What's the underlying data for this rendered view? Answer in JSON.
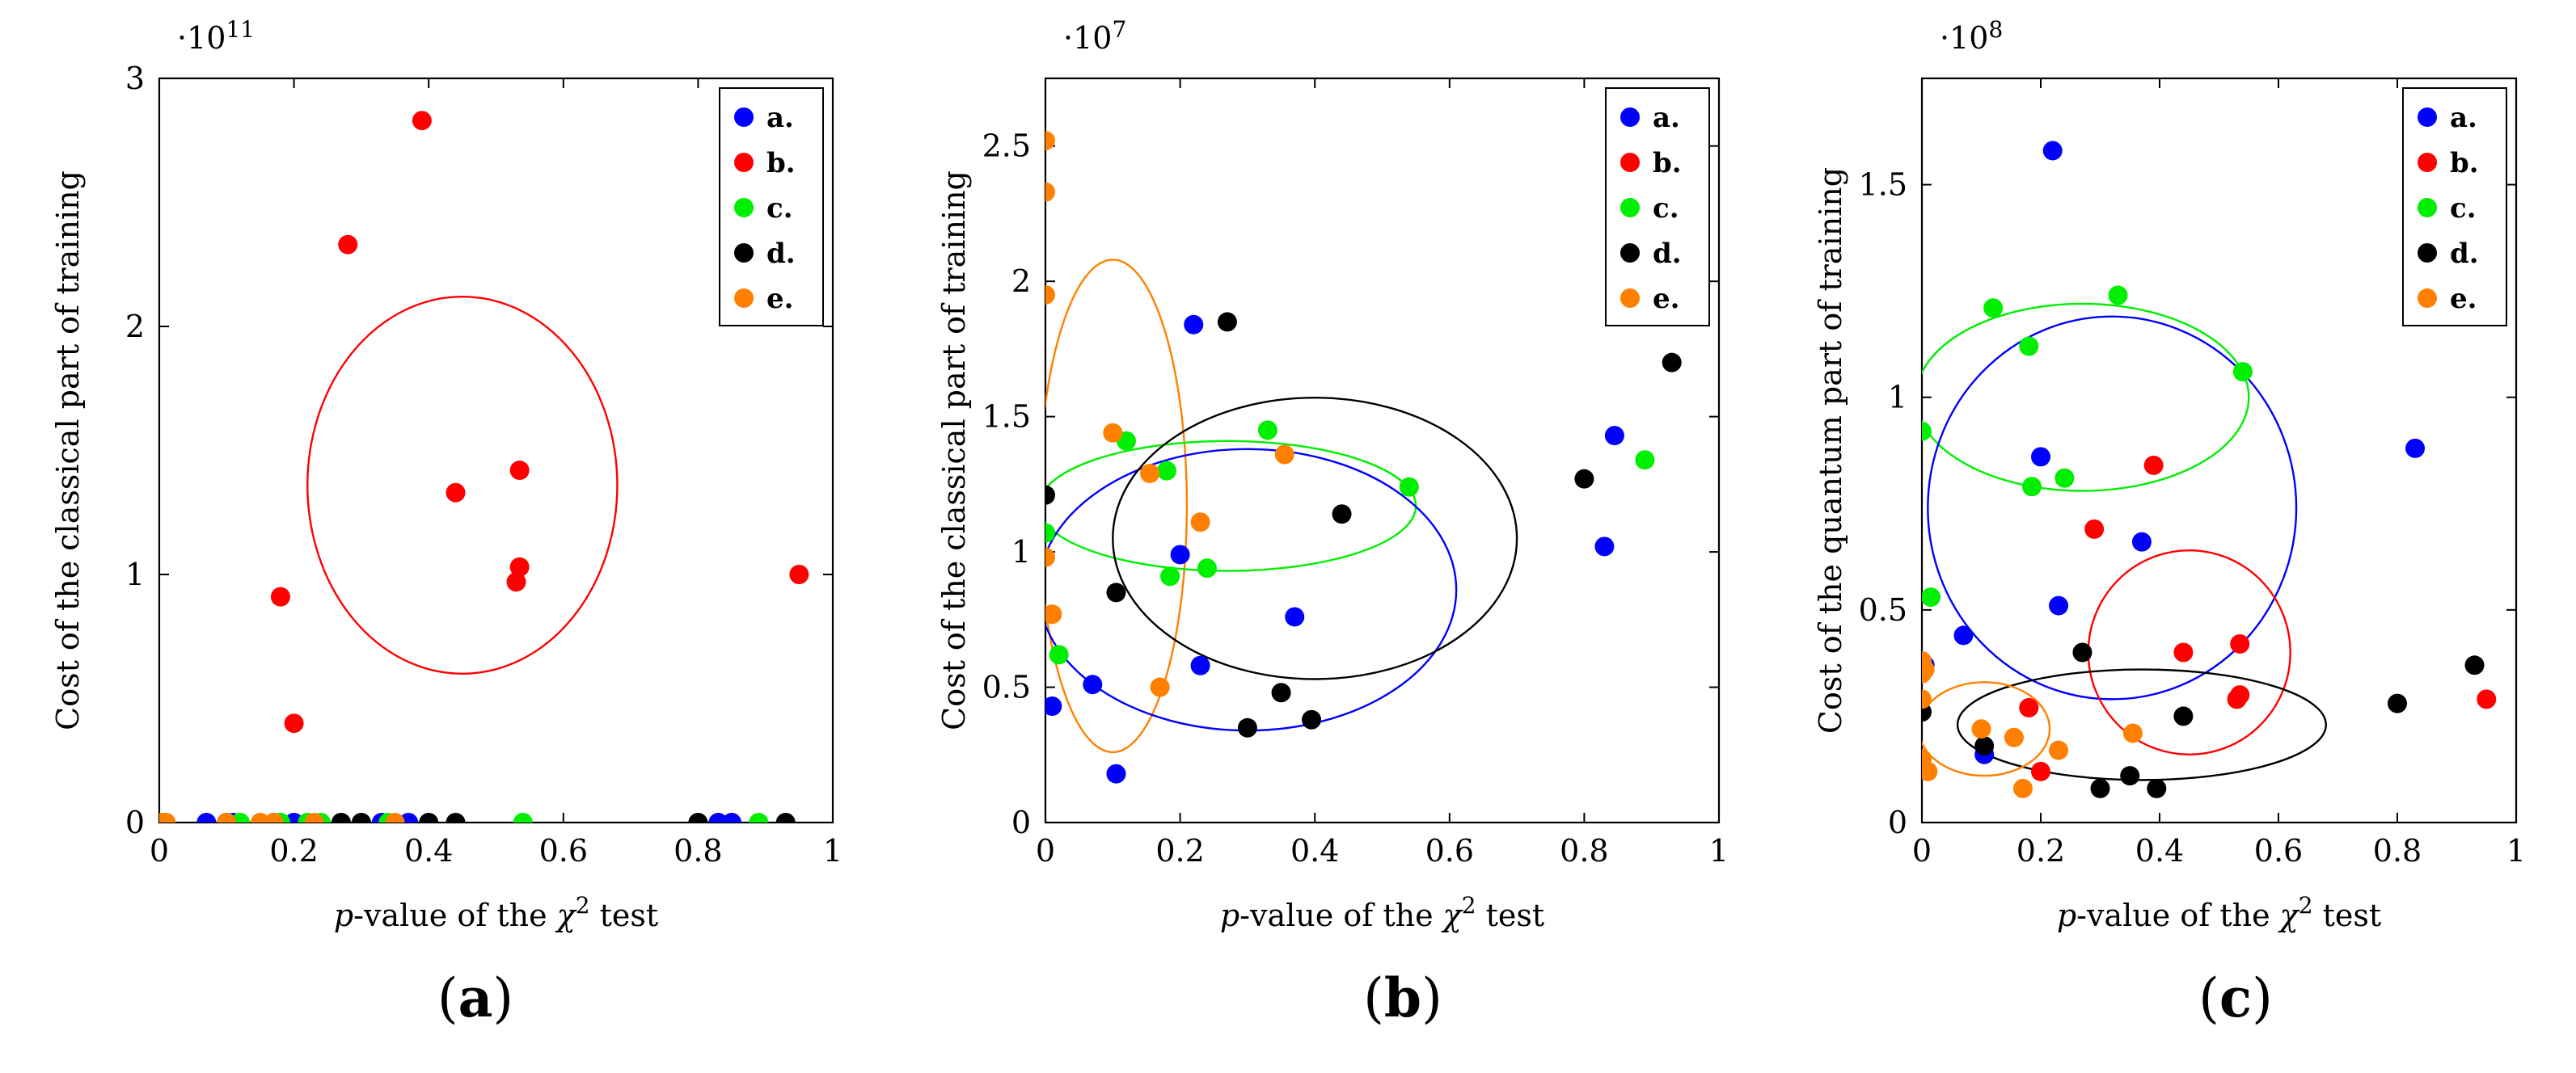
{
  "panels": [
    {
      "caption_open": "(",
      "caption_letter": "a",
      "caption_close": ")"
    },
    {
      "caption_open": "(",
      "caption_letter": "b",
      "caption_close": ")"
    },
    {
      "caption_open": "(",
      "caption_letter": "c",
      "caption_close": ")"
    }
  ],
  "colors": {
    "a": "#0000ff",
    "b": "#ff0000",
    "c": "#00ee00",
    "d": "#000000",
    "e": "#ff8000"
  },
  "chart_data": [
    {
      "type": "scatter",
      "title": "",
      "xlabel_italic": "p",
      "xlabel_rest": "-value of the ",
      "xlabel_chi": "χ",
      "xlabel_sup": "2",
      "xlabel_end": " test",
      "ylabel": "Cost of the classical part of training",
      "exponent_prefix": "·10",
      "exponent_power": "11",
      "scale": 100000000000.0,
      "xlim": [
        0,
        1
      ],
      "ylim": [
        0,
        3.0
      ],
      "xticks": [
        0,
        0.2,
        0.4,
        0.6,
        0.8,
        1
      ],
      "xtick_labels": [
        "0",
        "0.2",
        "0.4",
        "0.6",
        "0.8",
        "1"
      ],
      "yticks": [
        0,
        1,
        2,
        3
      ],
      "ytick_labels": [
        "0",
        "1",
        "2",
        "3"
      ],
      "legend": [
        "a.",
        "b.",
        "c.",
        "d.",
        "e."
      ],
      "legend_position": "top-right",
      "series": [
        {
          "name": "a.",
          "color": "#0000ff",
          "x": [
            0.07,
            0.11,
            0.17,
            0.2,
            0.33,
            0.37,
            0.83,
            0.85
          ],
          "y": [
            0,
            0,
            0,
            0,
            0,
            0,
            0,
            0
          ]
        },
        {
          "name": "b.",
          "color": "#ff0000",
          "x": [
            0.18,
            0.2,
            0.28,
            0.39,
            0.44,
            0.53,
            0.535,
            0.535,
            0.95
          ],
          "y": [
            0.91,
            0.4,
            2.33,
            2.83,
            1.33,
            0.97,
            1.03,
            1.42,
            1.0
          ]
        },
        {
          "name": "c.",
          "color": "#00ee00",
          "x": [
            0.12,
            0.18,
            0.22,
            0.24,
            0.34,
            0.54,
            0.89
          ],
          "y": [
            0,
            0,
            0,
            0,
            0,
            0,
            0
          ]
        },
        {
          "name": "d.",
          "color": "#000000",
          "x": [
            0.1,
            0.27,
            0.3,
            0.4,
            0.44,
            0.8,
            0.93
          ],
          "y": [
            0,
            0,
            0,
            0,
            0,
            0,
            0
          ]
        },
        {
          "name": "e.",
          "color": "#ff8000",
          "x": [
            0.0,
            0.005,
            0.01,
            0.1,
            0.15,
            0.17,
            0.23,
            0.35
          ],
          "y": [
            0,
            0,
            0,
            0,
            0,
            0,
            0,
            0
          ]
        }
      ],
      "ellipses": [
        {
          "color": "#ff0000",
          "cx": 0.45,
          "cy": 1.36,
          "rx": 0.23,
          "ry": 0.76
        }
      ]
    },
    {
      "type": "scatter",
      "title": "",
      "xlabel_italic": "p",
      "xlabel_rest": "-value of the ",
      "xlabel_chi": "χ",
      "xlabel_sup": "2",
      "xlabel_end": " test",
      "ylabel": "Cost of the classical part of training",
      "exponent_prefix": "·10",
      "exponent_power": "7",
      "scale": 10000000.0,
      "xlim": [
        0,
        1
      ],
      "ylim": [
        0,
        2.75
      ],
      "xticks": [
        0,
        0.2,
        0.4,
        0.6,
        0.8,
        1
      ],
      "xtick_labels": [
        "0",
        "0.2",
        "0.4",
        "0.6",
        "0.8",
        "1"
      ],
      "yticks": [
        0,
        0.5,
        1,
        1.5,
        2,
        2.5
      ],
      "ytick_labels": [
        "0",
        "0.5",
        "1",
        "1.5",
        "2",
        "2.5"
      ],
      "legend": [
        "a.",
        "b.",
        "c.",
        "d.",
        "e."
      ],
      "legend_position": "top-right",
      "series": [
        {
          "name": "a.",
          "color": "#0000ff",
          "x": [
            0.01,
            0.07,
            0.105,
            0.2,
            0.22,
            0.23,
            0.37,
            0.83,
            0.845
          ],
          "y": [
            0.43,
            0.51,
            0.18,
            0.99,
            1.84,
            0.58,
            0.76,
            1.02,
            1.43
          ]
        },
        {
          "name": "b.",
          "color": "#ff0000",
          "x": [],
          "y": []
        },
        {
          "name": "c.",
          "color": "#00ee00",
          "x": [
            0.0,
            0.02,
            0.12,
            0.18,
            0.185,
            0.24,
            0.33,
            0.54,
            0.89
          ],
          "y": [
            1.07,
            0.62,
            1.41,
            1.3,
            0.91,
            0.94,
            1.45,
            1.24,
            1.34
          ]
        },
        {
          "name": "d.",
          "color": "#000000",
          "x": [
            0.0,
            0.105,
            0.27,
            0.3,
            0.35,
            0.395,
            0.44,
            0.8,
            0.93
          ],
          "y": [
            1.21,
            0.85,
            1.85,
            0.35,
            0.48,
            0.38,
            1.14,
            1.27,
            1.7
          ]
        },
        {
          "name": "e.",
          "color": "#ff8000",
          "x": [
            0.0,
            0.0,
            0.0,
            0.0,
            0.01,
            0.1,
            0.155,
            0.17,
            0.23,
            0.355
          ],
          "y": [
            2.52,
            2.33,
            1.95,
            0.98,
            0.77,
            1.44,
            1.29,
            0.5,
            1.11,
            1.36
          ]
        }
      ],
      "ellipses": [
        {
          "color": "#ff8000",
          "cx": 0.1,
          "cy": 1.17,
          "rx": 0.11,
          "ry": 0.91
        },
        {
          "color": "#00ee00",
          "cx": 0.27,
          "cy": 1.17,
          "rx": 0.28,
          "ry": 0.24
        },
        {
          "color": "#0000ff",
          "cx": 0.3,
          "cy": 0.86,
          "rx": 0.31,
          "ry": 0.52
        },
        {
          "color": "#000000",
          "cx": 0.4,
          "cy": 1.05,
          "rx": 0.3,
          "ry": 0.52
        }
      ]
    },
    {
      "type": "scatter",
      "title": "",
      "xlabel_italic": "p",
      "xlabel_rest": "-value of the ",
      "xlabel_chi": "χ",
      "xlabel_sup": "2",
      "xlabel_end": " test",
      "ylabel": "Cost of the quantum part of training",
      "exponent_prefix": "·10",
      "exponent_power": "8",
      "scale": 100000000.0,
      "xlim": [
        0,
        1
      ],
      "ylim": [
        0,
        1.75
      ],
      "xticks": [
        0,
        0.2,
        0.4,
        0.6,
        0.8,
        1
      ],
      "xtick_labels": [
        "0",
        "0.2",
        "0.4",
        "0.6",
        "0.8",
        "1"
      ],
      "yticks": [
        0,
        0.5,
        1,
        1.5
      ],
      "ytick_labels": [
        "0",
        "0.5",
        "1",
        "1.5"
      ],
      "legend": [
        "a.",
        "b.",
        "c.",
        "d.",
        "e."
      ],
      "legend_position": "top-right",
      "series": [
        {
          "name": "a.",
          "color": "#0000ff",
          "x": [
            0.005,
            0.07,
            0.105,
            0.2,
            0.22,
            0.23,
            0.37,
            0.83
          ],
          "y": [
            0.37,
            0.44,
            0.16,
            0.86,
            1.58,
            0.51,
            0.66,
            0.88
          ]
        },
        {
          "name": "b.",
          "color": "#ff0000",
          "x": [
            0.18,
            0.2,
            0.29,
            0.39,
            0.44,
            0.53,
            0.535,
            0.535,
            0.95
          ],
          "y": [
            0.27,
            0.12,
            0.69,
            0.84,
            0.4,
            0.29,
            0.3,
            0.42,
            0.29
          ]
        },
        {
          "name": "c.",
          "color": "#00ee00",
          "x": [
            0.0,
            0.015,
            0.12,
            0.18,
            0.185,
            0.24,
            0.33,
            0.54
          ],
          "y": [
            0.92,
            0.53,
            1.21,
            1.12,
            0.79,
            0.81,
            1.24,
            1.06
          ]
        },
        {
          "name": "d.",
          "color": "#000000",
          "x": [
            0.0,
            0.105,
            0.27,
            0.3,
            0.35,
            0.395,
            0.44,
            0.8,
            0.93
          ],
          "y": [
            0.26,
            0.18,
            0.4,
            0.08,
            0.11,
            0.08,
            0.25,
            0.28,
            0.37
          ]
        },
        {
          "name": "e.",
          "color": "#ff8000",
          "x": [
            0.0,
            0.0,
            0.0,
            0.0,
            0.005,
            0.01,
            0.1,
            0.155,
            0.17,
            0.23,
            0.355
          ],
          "y": [
            0.38,
            0.35,
            0.29,
            0.15,
            0.36,
            0.12,
            0.22,
            0.2,
            0.08,
            0.17,
            0.21
          ]
        }
      ],
      "ellipses": [
        {
          "color": "#00ee00",
          "cx": 0.27,
          "cy": 1.0,
          "rx": 0.28,
          "ry": 0.22
        },
        {
          "color": "#0000ff",
          "cx": 0.32,
          "cy": 0.74,
          "rx": 0.31,
          "ry": 0.45
        },
        {
          "color": "#ff0000",
          "cx": 0.45,
          "cy": 0.4,
          "rx": 0.17,
          "ry": 0.24
        },
        {
          "color": "#000000",
          "cx": 0.37,
          "cy": 0.23,
          "rx": 0.31,
          "ry": 0.13
        },
        {
          "color": "#ff8000",
          "cx": 0.105,
          "cy": 0.22,
          "rx": 0.11,
          "ry": 0.11
        }
      ]
    }
  ]
}
